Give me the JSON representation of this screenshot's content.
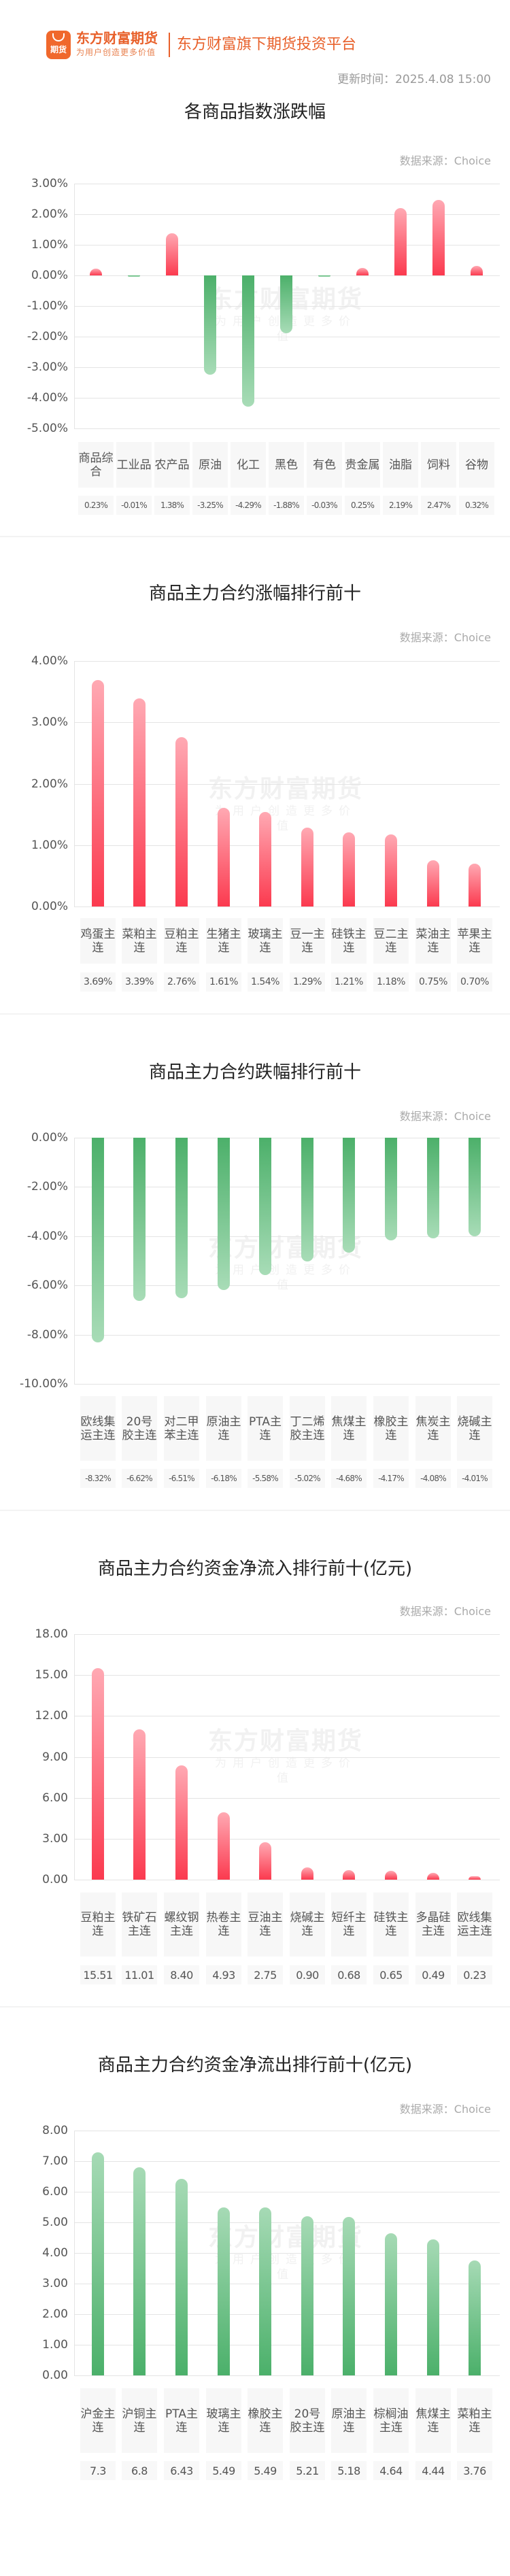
{
  "header": {
    "logo_text": "期货",
    "brand_name": "东方财富期货",
    "brand_slogan": "为用户创造更多价值",
    "tagline": "东方财富旗下期货投资平台",
    "update_time": "更新时间：2025.4.08 15:00",
    "brand_color": "#e8602a"
  },
  "watermark": {
    "line1": "东方财富期货",
    "line2": "为用户创造更多价值"
  },
  "colors": {
    "up": "#fb3a4f",
    "down": "#4bb06a"
  },
  "chart_data": [
    {
      "type": "bar",
      "title": "各商品指数涨跌幅",
      "source": "数据来源：Choice",
      "categories": [
        "商品综合",
        "工业品",
        "农产品",
        "原油",
        "化工",
        "黑色",
        "有色",
        "贵金属",
        "油脂",
        "饲料",
        "谷物"
      ],
      "values": [
        0.23,
        -0.01,
        1.38,
        -3.25,
        -4.29,
        -1.88,
        -0.03,
        0.25,
        2.19,
        2.47,
        0.32
      ],
      "value_labels": [
        "0.23%",
        "-0.01%",
        "1.38%",
        "-3.25%",
        "-4.29%",
        "-1.88%",
        "-0.03%",
        "0.25%",
        "2.19%",
        "2.47%",
        "0.32%"
      ],
      "yticks": [
        "3.00%",
        "2.00%",
        "1.00%",
        "0.00%",
        "-1.00%",
        "-2.00%",
        "-3.00%",
        "-4.00%",
        "-5.00%"
      ],
      "ylim": [
        -5,
        3
      ],
      "unit": "%",
      "grid": true,
      "xlabel": "",
      "ylabel": ""
    },
    {
      "type": "bar",
      "title": "商品主力合约涨幅排行前十",
      "source": "数据来源：Choice",
      "categories": [
        "鸡蛋主连",
        "菜粕主连",
        "豆粕主连",
        "生猪主连",
        "玻璃主连",
        "豆一主连",
        "硅铁主连",
        "豆二主连",
        "菜油主连",
        "苹果主连"
      ],
      "values": [
        3.69,
        3.39,
        2.76,
        1.61,
        1.54,
        1.29,
        1.21,
        1.18,
        0.75,
        0.7
      ],
      "value_labels": [
        "3.69%",
        "3.39%",
        "2.76%",
        "1.61%",
        "1.54%",
        "1.29%",
        "1.21%",
        "1.18%",
        "0.75%",
        "0.70%"
      ],
      "yticks": [
        "4.00%",
        "3.00%",
        "2.00%",
        "1.00%",
        "0.00%"
      ],
      "ylim": [
        0,
        4
      ],
      "unit": "%",
      "grid": true,
      "xlabel": "",
      "ylabel": ""
    },
    {
      "type": "bar",
      "title": "商品主力合约跌幅排行前十",
      "source": "数据来源：Choice",
      "categories": [
        "欧线集运主连",
        "20号胶主连",
        "对二甲苯主连",
        "原油主连",
        "PTA主连",
        "丁二烯胶主连",
        "焦煤主连",
        "橡胶主连",
        "焦炭主连",
        "烧碱主连"
      ],
      "values": [
        -8.32,
        -6.62,
        -6.51,
        -6.18,
        -5.58,
        -5.02,
        -4.68,
        -4.17,
        -4.08,
        -4.01
      ],
      "value_labels": [
        "-8.32%",
        "-6.62%",
        "-6.51%",
        "-6.18%",
        "-5.58%",
        "-5.02%",
        "-4.68%",
        "-4.17%",
        "-4.08%",
        "-4.01%"
      ],
      "yticks": [
        "0.00%",
        "-2.00%",
        "-4.00%",
        "-6.00%",
        "-8.00%",
        "-10.00%"
      ],
      "ylim": [
        -10,
        0
      ],
      "unit": "%",
      "grid": true,
      "xlabel": "",
      "ylabel": ""
    },
    {
      "type": "bar",
      "title": "商品主力合约资金净流入排行前十(亿元)",
      "source": "数据来源：Choice",
      "categories": [
        "豆粕主连",
        "铁矿石主连",
        "螺纹钢主连",
        "热卷主连",
        "豆油主连",
        "烧碱主连",
        "短纤主连",
        "硅铁主连",
        "多晶硅主连",
        "欧线集运主连"
      ],
      "values": [
        15.51,
        11.01,
        8.4,
        4.93,
        2.75,
        0.9,
        0.68,
        0.65,
        0.49,
        0.23
      ],
      "value_labels": [
        "15.51",
        "11.01",
        "8.40",
        "4.93",
        "2.75",
        "0.90",
        "0.68",
        "0.65",
        "0.49",
        "0.23"
      ],
      "yticks": [
        "18.00",
        "15.00",
        "12.00",
        "9.00",
        "6.00",
        "3.00",
        "0.00"
      ],
      "ylim": [
        0,
        18
      ],
      "unit": "亿元",
      "grid": true,
      "xlabel": "",
      "ylabel": ""
    },
    {
      "type": "bar",
      "title": "商品主力合约资金净流出排行前十(亿元)",
      "source": "数据来源：Choice",
      "categories": [
        "沪金主连",
        "沪铜主连",
        "PTA主连",
        "玻璃主连",
        "橡胶主连",
        "20号胶主连",
        "原油主连",
        "棕榈油主连",
        "焦煤主连",
        "菜粕主连"
      ],
      "values": [
        7.3,
        6.8,
        6.43,
        5.49,
        5.49,
        5.21,
        5.18,
        4.64,
        4.44,
        3.76
      ],
      "value_labels": [
        "7.3",
        "6.8",
        "6.43",
        "5.49",
        "5.49",
        "5.21",
        "5.18",
        "4.64",
        "4.44",
        "3.76"
      ],
      "yticks": [
        "8.00",
        "7.00",
        "6.00",
        "5.00",
        "4.00",
        "3.00",
        "2.00",
        "1.00",
        "0.00"
      ],
      "ylim": [
        0,
        8
      ],
      "unit": "亿元",
      "grid": true,
      "xlabel": "",
      "ylabel": ""
    }
  ]
}
